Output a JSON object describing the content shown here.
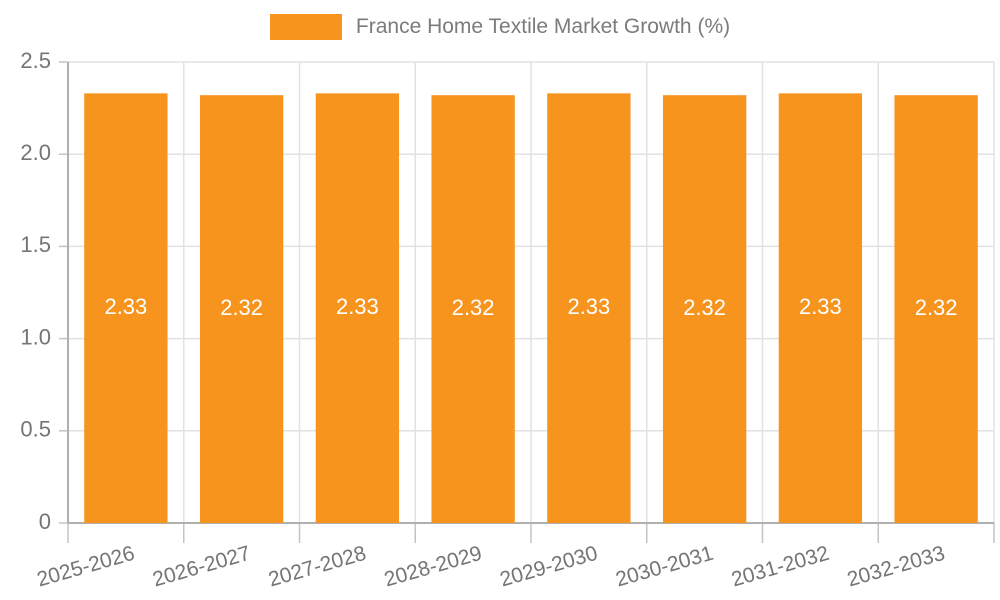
{
  "chart_data": {
    "type": "bar",
    "title": "France Home Textile Market Growth (%)",
    "categories": [
      "2025-2026",
      "2026-2027",
      "2027-2028",
      "2028-2029",
      "2029-2030",
      "2030-2031",
      "2031-2032",
      "2032-2033"
    ],
    "values": [
      2.33,
      2.32,
      2.33,
      2.32,
      2.33,
      2.32,
      2.33,
      2.32
    ],
    "value_labels": [
      "2.33",
      "2.32",
      "2.33",
      "2.32",
      "2.33",
      "2.32",
      "2.33",
      "2.32"
    ],
    "xlabel": "",
    "ylabel": "",
    "ylim": [
      0,
      2.5
    ],
    "yticks": [
      0,
      0.5,
      1.0,
      1.5,
      2.0,
      2.5
    ],
    "ytick_labels": [
      "0",
      "0.5",
      "1.0",
      "1.5",
      "2.0",
      "2.5"
    ],
    "grid": "on",
    "legend_position": "top-center",
    "bar_color": "#F7941E",
    "axis_color": "#b0b0b0",
    "grid_color": "#e2e2e2",
    "tick_color": "#c4c4c4",
    "tick_label_color": "#757575",
    "value_label_color": "#ffffff"
  },
  "legend": {
    "label": "France Home Textile Market Growth (%)"
  }
}
